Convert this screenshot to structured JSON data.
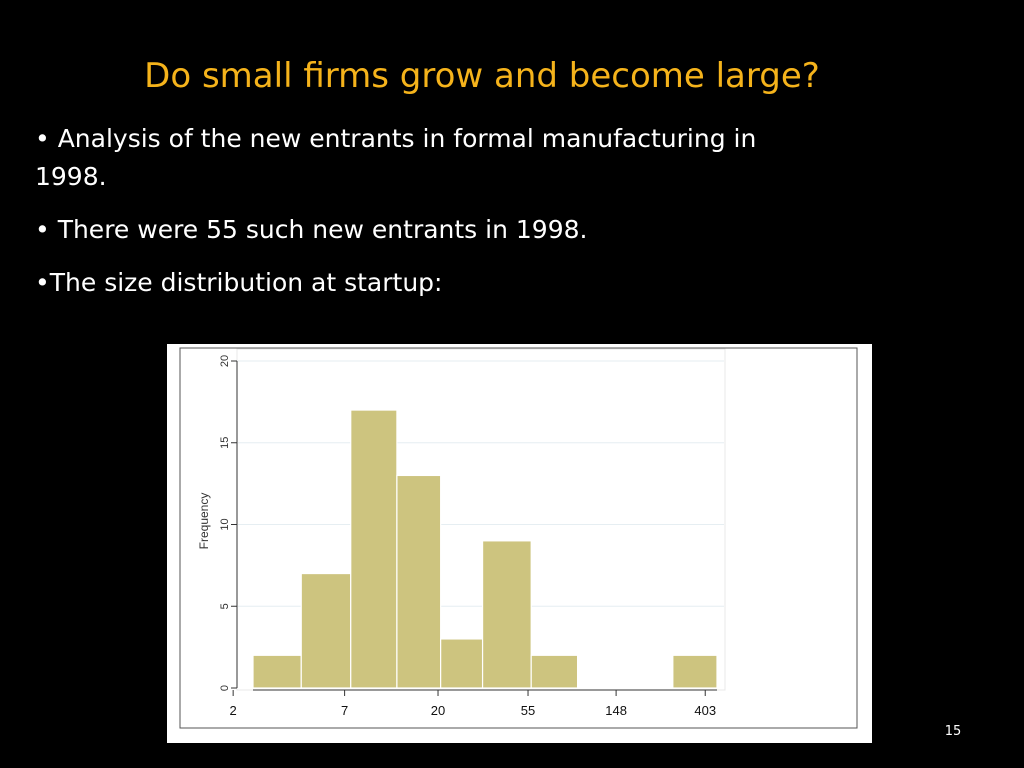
{
  "slide": {
    "title": "Do small firms grow and become large?",
    "bullets": [
      "• Analysis of the new entrants in formal manufacturing in 1998.",
      "• There were 55 such new entrants in 1998.",
      "•The size distribution at startup:"
    ],
    "page_number": "15",
    "colors": {
      "background": "#000000",
      "title": "#f5b31b",
      "text": "#ffffff",
      "bar_fill": "#cdc47f",
      "bar_edge": "#ffffff"
    }
  },
  "chart_data": {
    "type": "bar",
    "xlabel": "",
    "ylabel": "Frequency",
    "xscale": "log",
    "ylim": [
      0,
      20
    ],
    "yticks": [
      0,
      5,
      10,
      15,
      20
    ],
    "xticks": [
      2,
      7,
      20,
      55,
      148,
      403
    ],
    "grid": true,
    "bins": [
      {
        "start": 2.5,
        "end": 4.3,
        "value": 2
      },
      {
        "start": 4.3,
        "end": 7.5,
        "value": 7
      },
      {
        "start": 7.5,
        "end": 12.6,
        "value": 17
      },
      {
        "start": 12.6,
        "end": 20.6,
        "value": 13
      },
      {
        "start": 20.6,
        "end": 33.0,
        "value": 3
      },
      {
        "start": 33.0,
        "end": 57.0,
        "value": 9
      },
      {
        "start": 57.0,
        "end": 96.0,
        "value": 2
      },
      {
        "start": 96.0,
        "end": 165.0,
        "value": 0
      },
      {
        "start": 165.0,
        "end": 280.0,
        "value": 0
      },
      {
        "start": 280.0,
        "end": 460.0,
        "value": 2
      }
    ]
  }
}
